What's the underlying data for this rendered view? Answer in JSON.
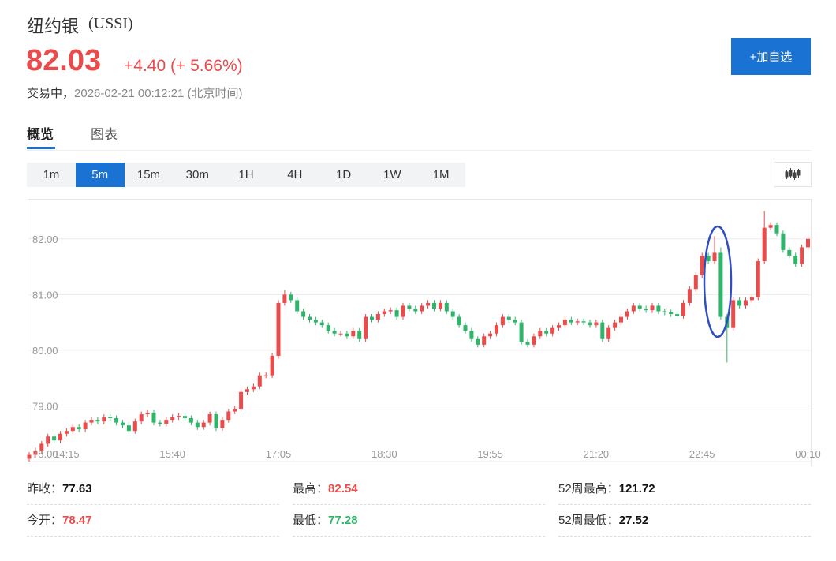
{
  "header": {
    "name": "纽约银",
    "code": "(USSI)",
    "price": "82.03",
    "change": "+4.40",
    "change_pct": "(+ 5.66%)",
    "status": "交易中，",
    "time": "2026-02-21 00:12:21",
    "timezone": "(北京时间)",
    "button": "+加自选"
  },
  "tabs": [
    "概览",
    "图表"
  ],
  "periods": [
    "1m",
    "5m",
    "15m",
    "30m",
    "1H",
    "4H",
    "1D",
    "1W",
    "1M"
  ],
  "stats": [
    {
      "label": "昨收：",
      "value": "77.63"
    },
    {
      "label": "最高：",
      "value": "82.54"
    },
    {
      "label": "52周最高：",
      "value": "121.72"
    },
    {
      "label": "今开：",
      "value": "78.47"
    },
    {
      "label": "最低：",
      "value": "77.28"
    },
    {
      "label": "52周最低：",
      "value": "27.52"
    }
  ],
  "chart_data": {
    "type": "candlestick",
    "up_color": "#ea4b4b",
    "down_color": "#2fb56a",
    "grid": true,
    "ylim": [
      78,
      82.72
    ],
    "yticks": [
      {
        "value": 78,
        "label": "78.00"
      },
      {
        "value": 79,
        "label": "79.00"
      },
      {
        "value": 80,
        "label": "80.00"
      },
      {
        "value": 81,
        "label": "81.00"
      },
      {
        "value": 82,
        "label": "82.00"
      }
    ],
    "categories": [
      null,
      null,
      null,
      null,
      null,
      null,
      "14:15",
      null,
      null,
      null,
      null,
      null,
      null,
      null,
      null,
      null,
      null,
      null,
      null,
      null,
      null,
      null,
      null,
      "15:40",
      null,
      null,
      null,
      null,
      null,
      null,
      null,
      null,
      null,
      null,
      null,
      null,
      null,
      null,
      null,
      null,
      "17:05",
      null,
      null,
      null,
      null,
      null,
      null,
      null,
      null,
      null,
      null,
      null,
      null,
      null,
      null,
      null,
      null,
      "18:30",
      null,
      null,
      null,
      null,
      null,
      null,
      null,
      null,
      null,
      null,
      null,
      null,
      null,
      null,
      null,
      null,
      "19:55",
      null,
      null,
      null,
      null,
      null,
      null,
      null,
      null,
      null,
      null,
      null,
      null,
      null,
      null,
      null,
      null,
      "21:20",
      null,
      null,
      null,
      null,
      null,
      null,
      null,
      null,
      null,
      null,
      null,
      null,
      null,
      null,
      null,
      null,
      "22:45",
      null,
      null,
      null,
      null,
      null,
      null,
      null,
      null,
      null,
      null,
      null,
      null,
      null,
      null,
      null,
      null,
      "00:10"
    ],
    "open": [
      78.05,
      78.12,
      78.2,
      78.32,
      78.45,
      78.38,
      78.5,
      78.55,
      78.62,
      78.58,
      78.7,
      78.75,
      78.72,
      78.8,
      78.78,
      78.7,
      78.65,
      78.55,
      78.72,
      78.85,
      78.88,
      78.7,
      78.68,
      78.75,
      78.8,
      78.82,
      78.78,
      78.7,
      78.62,
      78.7,
      78.85,
      78.6,
      78.75,
      78.9,
      78.95,
      79.25,
      79.3,
      79.35,
      79.55,
      79.55,
      79.9,
      80.85,
      81.0,
      80.9,
      80.7,
      80.6,
      80.55,
      80.5,
      80.45,
      80.35,
      80.3,
      80.3,
      80.25,
      80.35,
      80.2,
      80.6,
      80.55,
      80.65,
      80.7,
      80.72,
      80.6,
      80.8,
      80.75,
      80.7,
      80.8,
      80.85,
      80.75,
      80.85,
      80.7,
      80.6,
      80.45,
      80.35,
      80.2,
      80.1,
      80.25,
      80.3,
      80.45,
      80.6,
      80.55,
      80.5,
      80.15,
      80.1,
      80.25,
      80.35,
      80.3,
      80.4,
      80.45,
      80.55,
      80.5,
      80.52,
      80.5,
      80.45,
      80.5,
      80.2,
      80.4,
      80.5,
      80.6,
      80.7,
      80.8,
      80.75,
      80.72,
      80.8,
      80.7,
      80.68,
      80.65,
      80.62,
      80.85,
      81.1,
      81.35,
      81.7,
      81.6,
      81.75,
      80.6,
      80.4,
      80.9,
      80.8,
      80.9,
      80.95,
      81.6,
      82.2,
      82.25,
      82.1,
      81.8,
      81.7,
      81.55,
      81.85
    ],
    "high": [
      78.17,
      78.25,
      78.37,
      78.5,
      78.5,
      78.55,
      78.6,
      78.67,
      78.67,
      78.75,
      78.8,
      78.8,
      78.85,
      78.85,
      78.83,
      78.75,
      78.7,
      78.77,
      78.9,
      78.93,
      78.93,
      78.75,
      78.8,
      78.85,
      78.87,
      78.87,
      78.83,
      78.75,
      78.75,
      78.9,
      78.9,
      78.8,
      78.95,
      79.0,
      79.3,
      79.35,
      79.4,
      79.6,
      79.6,
      79.95,
      80.9,
      81.08,
      81.05,
      80.95,
      80.75,
      80.65,
      80.6,
      80.55,
      80.5,
      80.4,
      80.35,
      80.35,
      80.4,
      80.4,
      80.65,
      80.65,
      80.7,
      80.75,
      80.77,
      80.77,
      80.85,
      80.85,
      80.8,
      80.85,
      80.9,
      80.9,
      80.9,
      80.9,
      80.75,
      80.65,
      80.5,
      80.4,
      80.25,
      80.3,
      80.35,
      80.5,
      80.65,
      80.65,
      80.6,
      80.55,
      80.2,
      80.3,
      80.4,
      80.4,
      80.45,
      80.5,
      80.6,
      80.6,
      80.57,
      80.57,
      80.55,
      80.55,
      80.55,
      80.45,
      80.55,
      80.65,
      80.75,
      80.85,
      80.85,
      80.8,
      80.85,
      80.85,
      80.75,
      80.73,
      80.7,
      80.9,
      81.15,
      81.4,
      81.75,
      81.75,
      82.05,
      81.85,
      80.65,
      80.95,
      80.95,
      80.95,
      81.0,
      81.65,
      82.5,
      82.3,
      82.3,
      82.15,
      81.85,
      81.75,
      81.9,
      82.05
    ],
    "low": [
      78.0,
      78.07,
      78.15,
      78.27,
      78.33,
      78.33,
      78.45,
      78.5,
      78.53,
      78.53,
      78.65,
      78.67,
      78.67,
      78.73,
      78.65,
      78.6,
      78.5,
      78.5,
      78.67,
      78.8,
      78.65,
      78.63,
      78.63,
      78.7,
      78.75,
      78.73,
      78.65,
      78.57,
      78.57,
      78.65,
      78.55,
      78.55,
      78.7,
      78.85,
      78.9,
      79.2,
      79.25,
      79.3,
      79.5,
      79.5,
      79.85,
      80.8,
      80.85,
      80.65,
      80.55,
      80.5,
      80.45,
      80.4,
      80.3,
      80.25,
      80.25,
      80.2,
      80.2,
      80.15,
      80.15,
      80.5,
      80.5,
      80.6,
      80.65,
      80.55,
      80.55,
      80.7,
      80.65,
      80.65,
      80.75,
      80.7,
      80.7,
      80.65,
      80.55,
      80.4,
      80.3,
      80.15,
      80.05,
      80.05,
      80.2,
      80.25,
      80.4,
      80.5,
      80.45,
      80.1,
      80.05,
      80.05,
      80.2,
      80.25,
      80.25,
      80.35,
      80.4,
      80.45,
      80.45,
      80.45,
      80.4,
      80.4,
      80.15,
      80.15,
      80.35,
      80.45,
      80.55,
      80.65,
      80.7,
      80.67,
      80.67,
      80.65,
      80.63,
      80.6,
      80.57,
      80.57,
      80.8,
      81.05,
      81.3,
      81.55,
      81.55,
      80.55,
      79.78,
      80.35,
      80.75,
      80.75,
      80.85,
      80.9,
      81.55,
      82.15,
      82.05,
      81.75,
      81.65,
      81.5,
      81.5,
      81.8
    ],
    "close": [
      78.12,
      78.2,
      78.32,
      78.45,
      78.38,
      78.5,
      78.55,
      78.62,
      78.58,
      78.7,
      78.75,
      78.72,
      78.8,
      78.78,
      78.7,
      78.65,
      78.55,
      78.72,
      78.85,
      78.88,
      78.7,
      78.68,
      78.75,
      78.8,
      78.82,
      78.78,
      78.7,
      78.62,
      78.7,
      78.85,
      78.6,
      78.75,
      78.9,
      78.95,
      79.25,
      79.3,
      79.35,
      79.55,
      79.55,
      79.9,
      80.85,
      81.0,
      80.9,
      80.7,
      80.6,
      80.55,
      80.5,
      80.45,
      80.35,
      80.3,
      80.3,
      80.25,
      80.35,
      80.2,
      80.6,
      80.55,
      80.65,
      80.7,
      80.72,
      80.6,
      80.8,
      80.75,
      80.7,
      80.8,
      80.85,
      80.75,
      80.85,
      80.7,
      80.6,
      80.45,
      80.35,
      80.2,
      80.1,
      80.25,
      80.3,
      80.45,
      80.6,
      80.55,
      80.5,
      80.15,
      80.1,
      80.25,
      80.35,
      80.3,
      80.4,
      80.45,
      80.55,
      80.5,
      80.52,
      80.5,
      80.45,
      80.5,
      80.2,
      80.4,
      80.5,
      80.6,
      80.7,
      80.8,
      80.75,
      80.72,
      80.8,
      80.7,
      80.68,
      80.65,
      80.62,
      80.85,
      81.1,
      81.35,
      81.7,
      81.6,
      81.75,
      80.6,
      80.4,
      80.9,
      80.8,
      80.9,
      80.95,
      81.6,
      82.2,
      82.25,
      82.1,
      81.8,
      81.7,
      81.55,
      81.85,
      82.0
    ]
  }
}
